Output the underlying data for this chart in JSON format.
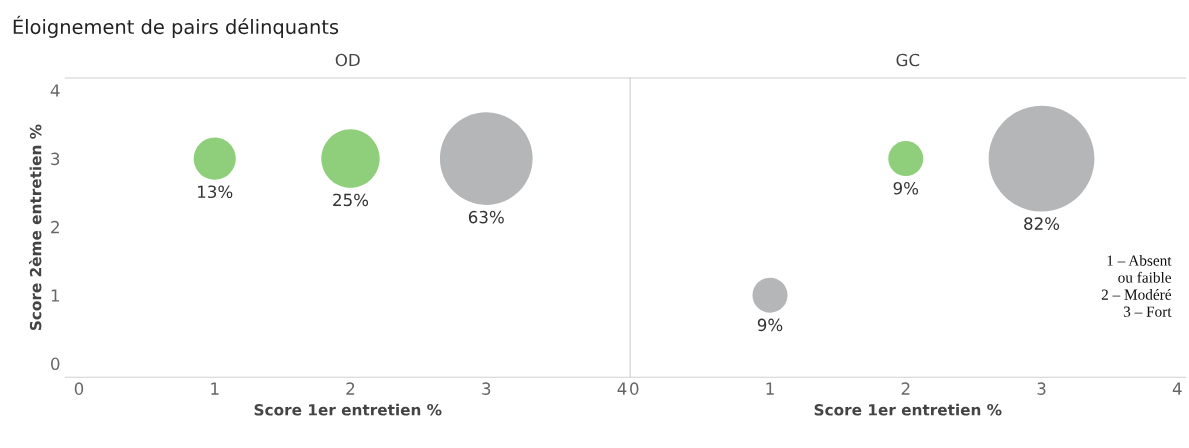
{
  "chart_data": [
    {
      "type": "bubble",
      "title": "Éloignement de pairs délinquants",
      "subtitle": "OD",
      "xlabel": "Score 1er entretien %",
      "ylabel": "Score 2ème entretien %",
      "x": [
        1,
        2,
        3
      ],
      "values": [
        3,
        3,
        3
      ],
      "sizes": [
        13,
        25,
        63
      ],
      "colors": [
        "#8fcf7c",
        "#8fcf7c",
        "#b4b6b8"
      ],
      "value_labels": [
        "13%",
        "25%",
        "63%"
      ],
      "marker": "circle",
      "xlim": [
        -0.1,
        4.06
      ],
      "xticks": [
        0,
        1,
        2,
        3,
        4
      ],
      "ylim": [
        -0.2,
        4.18
      ],
      "yticks": [
        0,
        1,
        2,
        3,
        4
      ],
      "grid": false,
      "legend": false
    },
    {
      "type": "bubble",
      "subtitle": "GC",
      "xlabel": "Score 1er entretien %",
      "x": [
        2,
        3,
        1
      ],
      "values": [
        3,
        3,
        1
      ],
      "sizes": [
        9,
        82,
        9
      ],
      "colors": [
        "#8fcf7c",
        "#b4b6b8",
        "#b4b6b8"
      ],
      "value_labels": [
        "9%",
        "82%",
        "9%"
      ],
      "marker": "circle",
      "xlim": [
        -0.03,
        4.06
      ],
      "xticks": [
        0,
        1,
        2,
        3,
        4
      ],
      "ylim": [
        -0.2,
        4.18
      ],
      "yticks": [
        0,
        1,
        2,
        3,
        4
      ],
      "tick_labels": "x",
      "grid": false,
      "legend": false,
      "annotations": [
        "1 – Absent\nou faible\n2 – Modéré\n3 – Fort"
      ]
    }
  ]
}
